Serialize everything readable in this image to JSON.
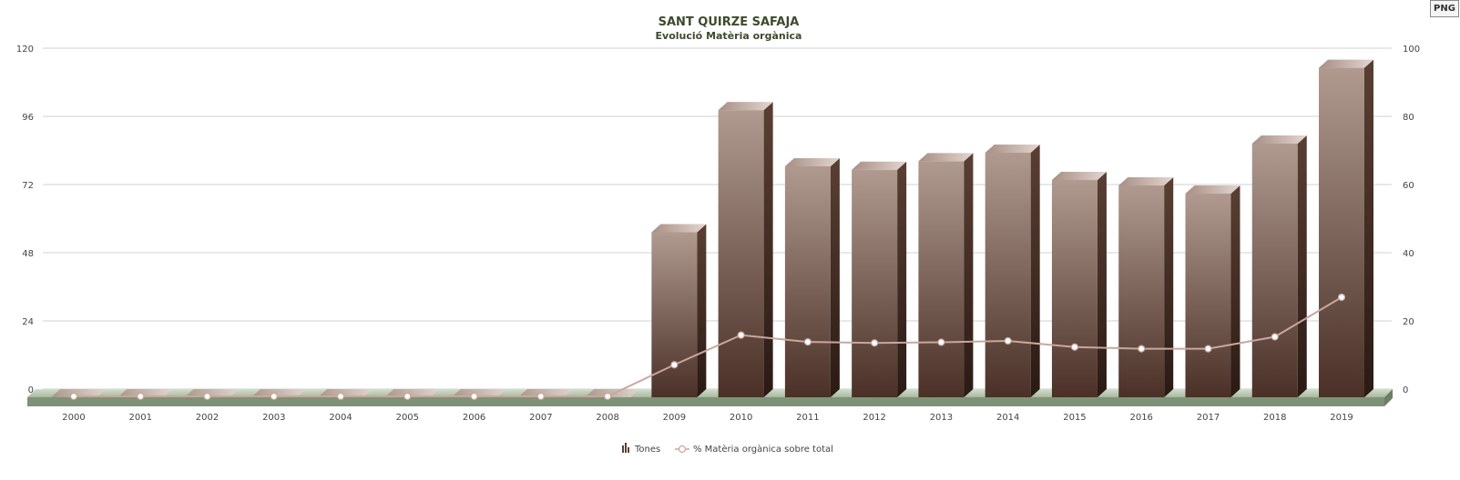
{
  "export": {
    "label": "PNG"
  },
  "chart_data": {
    "type": "bar",
    "title": "SANT QUIRZE SAFAJA",
    "subtitle": "Evolució Matèria orgànica",
    "categories": [
      "2000",
      "2001",
      "2002",
      "2003",
      "2004",
      "2005",
      "2006",
      "2007",
      "2008",
      "2009",
      "2010",
      "2011",
      "2012",
      "2013",
      "2014",
      "2015",
      "2016",
      "2017",
      "2018",
      "2019"
    ],
    "series": [
      {
        "name": "Tones",
        "type": "bar",
        "axis": "left",
        "values": [
          0,
          0,
          0,
          0,
          0,
          0,
          0,
          0,
          0,
          58.4,
          101.4,
          81.6,
          80.4,
          83.4,
          86.4,
          76.8,
          74.9,
          72.0,
          89.6,
          116.3
        ]
      },
      {
        "name": "% Matèria orgànica sobre total",
        "type": "line",
        "axis": "right",
        "values": [
          0,
          0,
          0,
          0,
          0,
          0,
          0,
          0,
          0,
          9.8,
          18.5,
          16.5,
          16.2,
          16.4,
          16.8,
          15.0,
          14.5,
          14.5,
          18.0,
          29.6
        ]
      }
    ],
    "ylim_left": [
      0,
      120
    ],
    "yticks_left": [
      "0",
      "24",
      "48",
      "72",
      "96",
      "120"
    ],
    "ylim_right": [
      0,
      100
    ],
    "yticks_right": [
      "0",
      "20",
      "40",
      "60",
      "80",
      "100"
    ],
    "grid": true,
    "legend_position": "bottom-center",
    "colors": {
      "bar_top": "#b09a90",
      "bar_bottom": "#4a3026",
      "bar_side": "#3b261d",
      "bar_cap": "#c8b6ae",
      "line": "#c9a79d",
      "title": "#3d4a2c",
      "floor": "#b8c7b0",
      "floor_dark": "#7f9278",
      "grid": "#d0d0d0"
    }
  }
}
